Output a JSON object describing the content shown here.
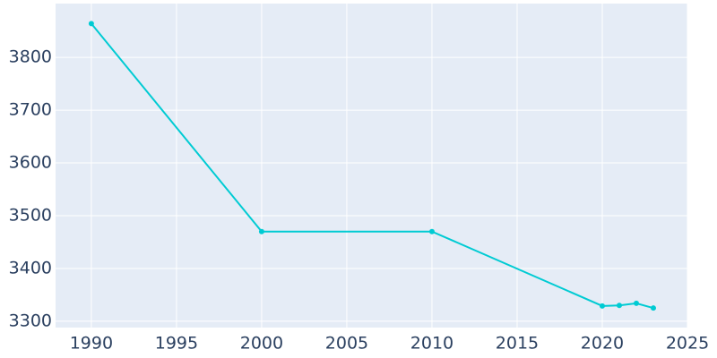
{
  "chart_data": {
    "type": "line",
    "x": [
      1990,
      2000,
      2010,
      2020,
      2021,
      2022,
      2023
    ],
    "series": [
      {
        "color": "#00cbd3",
        "values": [
          3864,
          3470,
          3470,
          3329,
          3330,
          3334,
          3325
        ]
      }
    ],
    "xlim": [
      1987.9,
      2025
    ],
    "xticks": [
      1990,
      1995,
      2000,
      2005,
      2010,
      2015,
      2020,
      2025
    ],
    "ylim": [
      3288,
      3902
    ],
    "yticks": [
      3300,
      3400,
      3500,
      3600,
      3700,
      3800
    ],
    "grid": true
  }
}
